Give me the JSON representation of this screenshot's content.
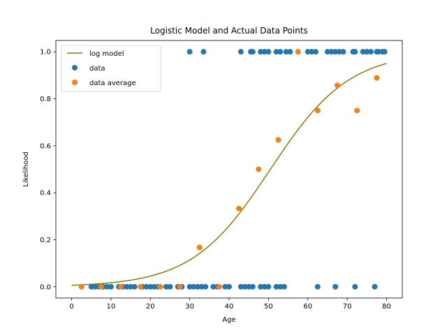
{
  "chart_data": {
    "type": "scatter",
    "title": "Logistic Model and Actual Data Points",
    "xlabel": "Age",
    "ylabel": "Likelihood",
    "xlim": [
      -4,
      84
    ],
    "ylim": [
      -0.048,
      1.048
    ],
    "xticks": [
      0,
      10,
      20,
      30,
      40,
      50,
      60,
      70,
      80
    ],
    "xtick_labels": [
      "0",
      "10",
      "20",
      "30",
      "40",
      "50",
      "60",
      "70",
      "80"
    ],
    "yticks": [
      0.0,
      0.2,
      0.4,
      0.6,
      0.8,
      1.0
    ],
    "ytick_labels": [
      "0.0",
      "0.2",
      "0.4",
      "0.6",
      "0.8",
      "1.0"
    ],
    "grid": false,
    "legend_position": "top-left",
    "series": [
      {
        "name": "log model",
        "kind": "line",
        "color": "#808000",
        "model": {
          "form": "logistic",
          "midpoint": 50.5,
          "slope": 0.1
        },
        "x_range": [
          0,
          80
        ]
      },
      {
        "name": "data",
        "kind": "scatter",
        "color": "#1f77b4",
        "points": [
          [
            5,
            0
          ],
          [
            6,
            0
          ],
          [
            7,
            0
          ],
          [
            8,
            0
          ],
          [
            9,
            0
          ],
          [
            10,
            0
          ],
          [
            12,
            0
          ],
          [
            13,
            0
          ],
          [
            14,
            0
          ],
          [
            15,
            0
          ],
          [
            16,
            0
          ],
          [
            18,
            0
          ],
          [
            19,
            0
          ],
          [
            20,
            0
          ],
          [
            21,
            0
          ],
          [
            22,
            0
          ],
          [
            24,
            0
          ],
          [
            25,
            0
          ],
          [
            27,
            0
          ],
          [
            28,
            0
          ],
          [
            30,
            0
          ],
          [
            31,
            0
          ],
          [
            32,
            0
          ],
          [
            33,
            0
          ],
          [
            34,
            0
          ],
          [
            36,
            0
          ],
          [
            37,
            0
          ],
          [
            39,
            0
          ],
          [
            40,
            0
          ],
          [
            43,
            0
          ],
          [
            44,
            0
          ],
          [
            45,
            0
          ],
          [
            46,
            0
          ],
          [
            48,
            0
          ],
          [
            49,
            0
          ],
          [
            50,
            0
          ],
          [
            52,
            0
          ],
          [
            53,
            0
          ],
          [
            54,
            0
          ],
          [
            62.5,
            0
          ],
          [
            67,
            0
          ],
          [
            72,
            0
          ],
          [
            77,
            0
          ],
          [
            30,
            1
          ],
          [
            33.5,
            1
          ],
          [
            43,
            1
          ],
          [
            45.5,
            1
          ],
          [
            46,
            1
          ],
          [
            48,
            1
          ],
          [
            49,
            1
          ],
          [
            50,
            1
          ],
          [
            52,
            1
          ],
          [
            53,
            1
          ],
          [
            54.5,
            1
          ],
          [
            55.5,
            1
          ],
          [
            60,
            1
          ],
          [
            61,
            1
          ],
          [
            62,
            1
          ],
          [
            65,
            1
          ],
          [
            66,
            1
          ],
          [
            67,
            1
          ],
          [
            68,
            1
          ],
          [
            69,
            1
          ],
          [
            71.5,
            1
          ],
          [
            72,
            1
          ],
          [
            74,
            1
          ],
          [
            75,
            1
          ],
          [
            76,
            1
          ],
          [
            77.5,
            1
          ],
          [
            78,
            1
          ],
          [
            79,
            1
          ],
          [
            79.5,
            1
          ]
        ]
      },
      {
        "name": "data average",
        "kind": "scatter",
        "color": "#ff7f0e",
        "points": [
          [
            2.5,
            0.0
          ],
          [
            7.5,
            0.0
          ],
          [
            12.5,
            0.0
          ],
          [
            17.5,
            0.0
          ],
          [
            22.5,
            0.0
          ],
          [
            27.5,
            0.0
          ],
          [
            32.5,
            0.167
          ],
          [
            37.5,
            0.0
          ],
          [
            42.5,
            0.333
          ],
          [
            47.5,
            0.5
          ],
          [
            52.5,
            0.625
          ],
          [
            57.5,
            1.0
          ],
          [
            62.5,
            0.75
          ],
          [
            67.5,
            0.857
          ],
          [
            72.5,
            0.75
          ],
          [
            77.5,
            0.889
          ]
        ]
      }
    ]
  }
}
